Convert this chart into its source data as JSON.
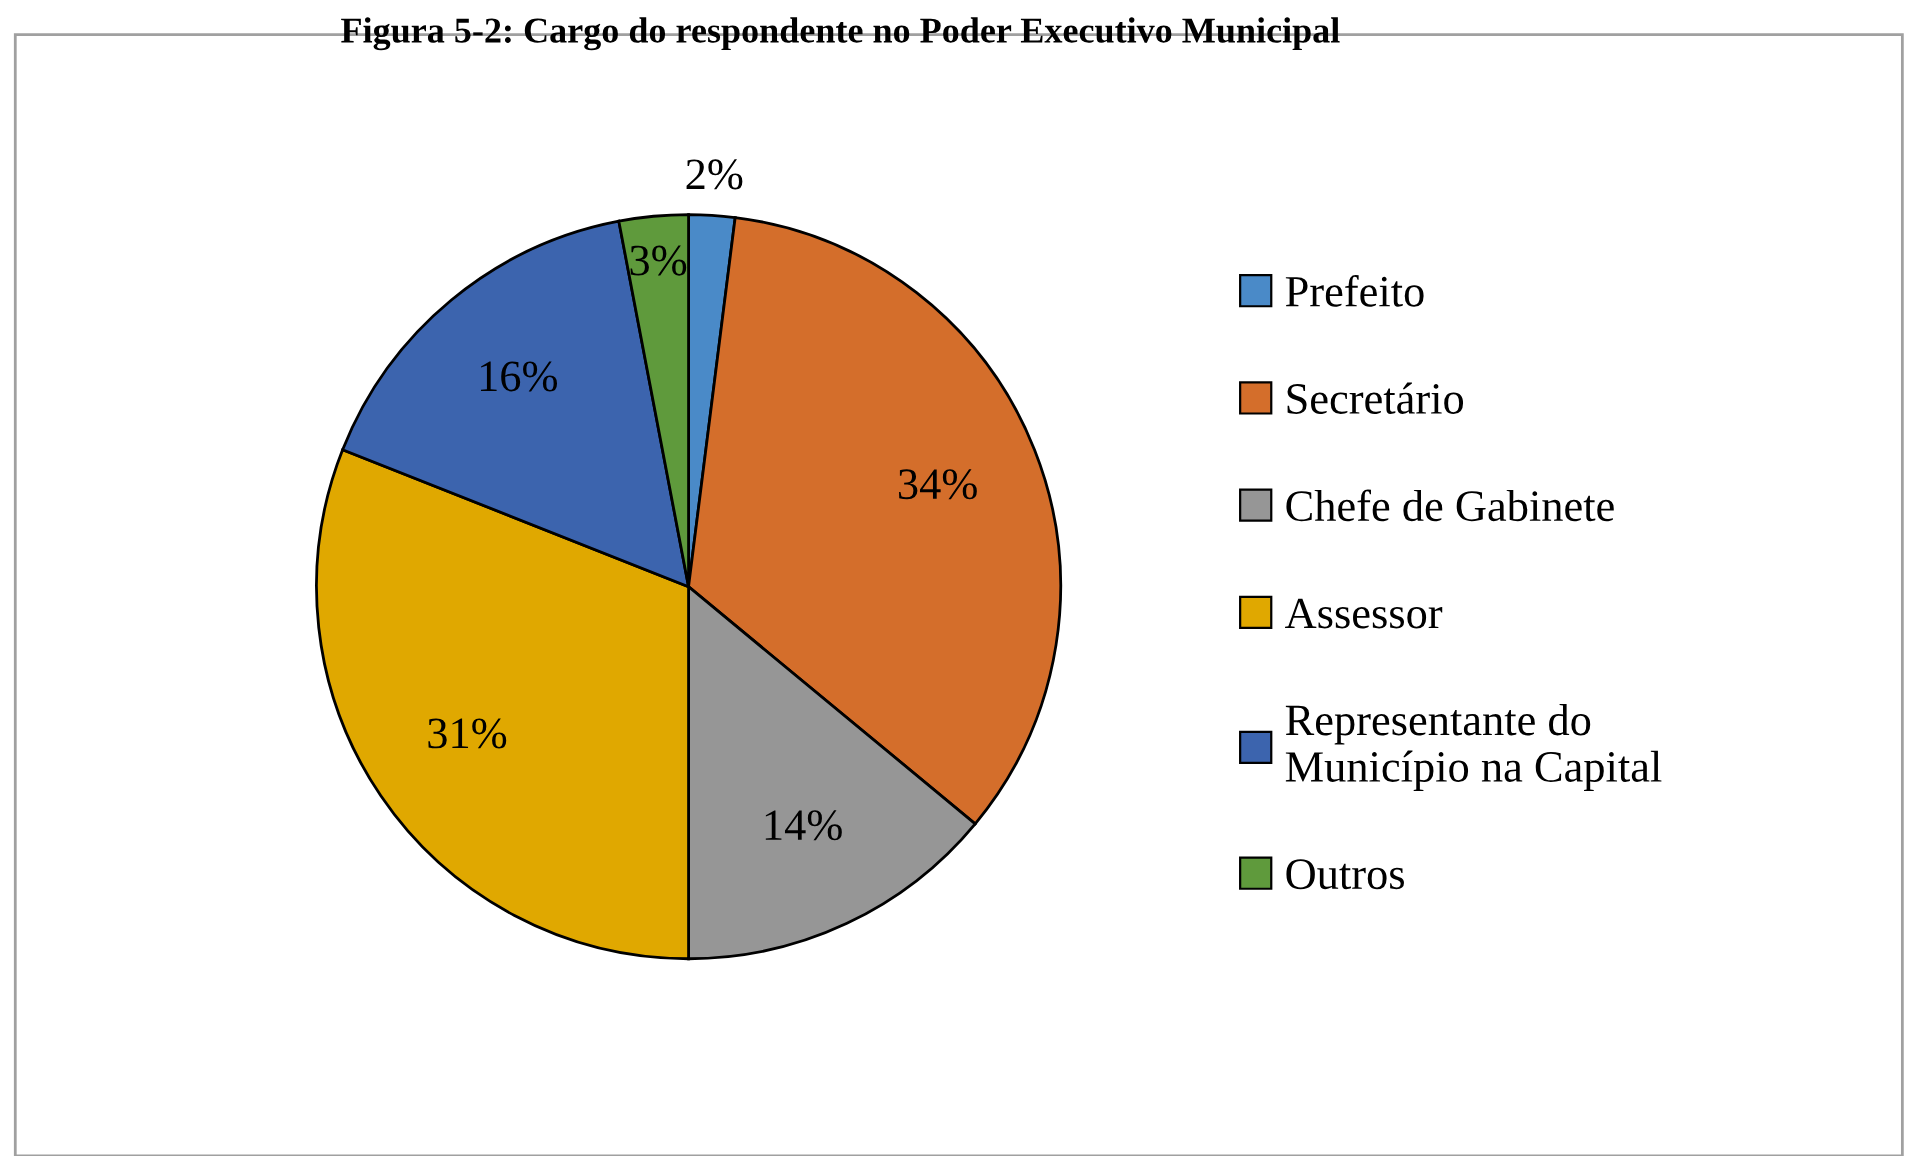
{
  "chart_data": {
    "type": "pie",
    "title": "Figura 5-2: Cargo do respondente no Poder Executivo Municipal",
    "categories": [
      "Prefeito",
      "Secretário",
      "Chefe de Gabinete",
      "Assessor",
      "Representante do Município na Capital",
      "Outros"
    ],
    "values": [
      2,
      34,
      14,
      31,
      16,
      3
    ],
    "value_labels": [
      "2%",
      "34%",
      "14%",
      "31%",
      "16%",
      "3%"
    ],
    "colors": [
      "#4a8ac8",
      "#d46e2b",
      "#969696",
      "#e0a800",
      "#3c64ae",
      "#5f9a3c"
    ],
    "legend": "right"
  }
}
